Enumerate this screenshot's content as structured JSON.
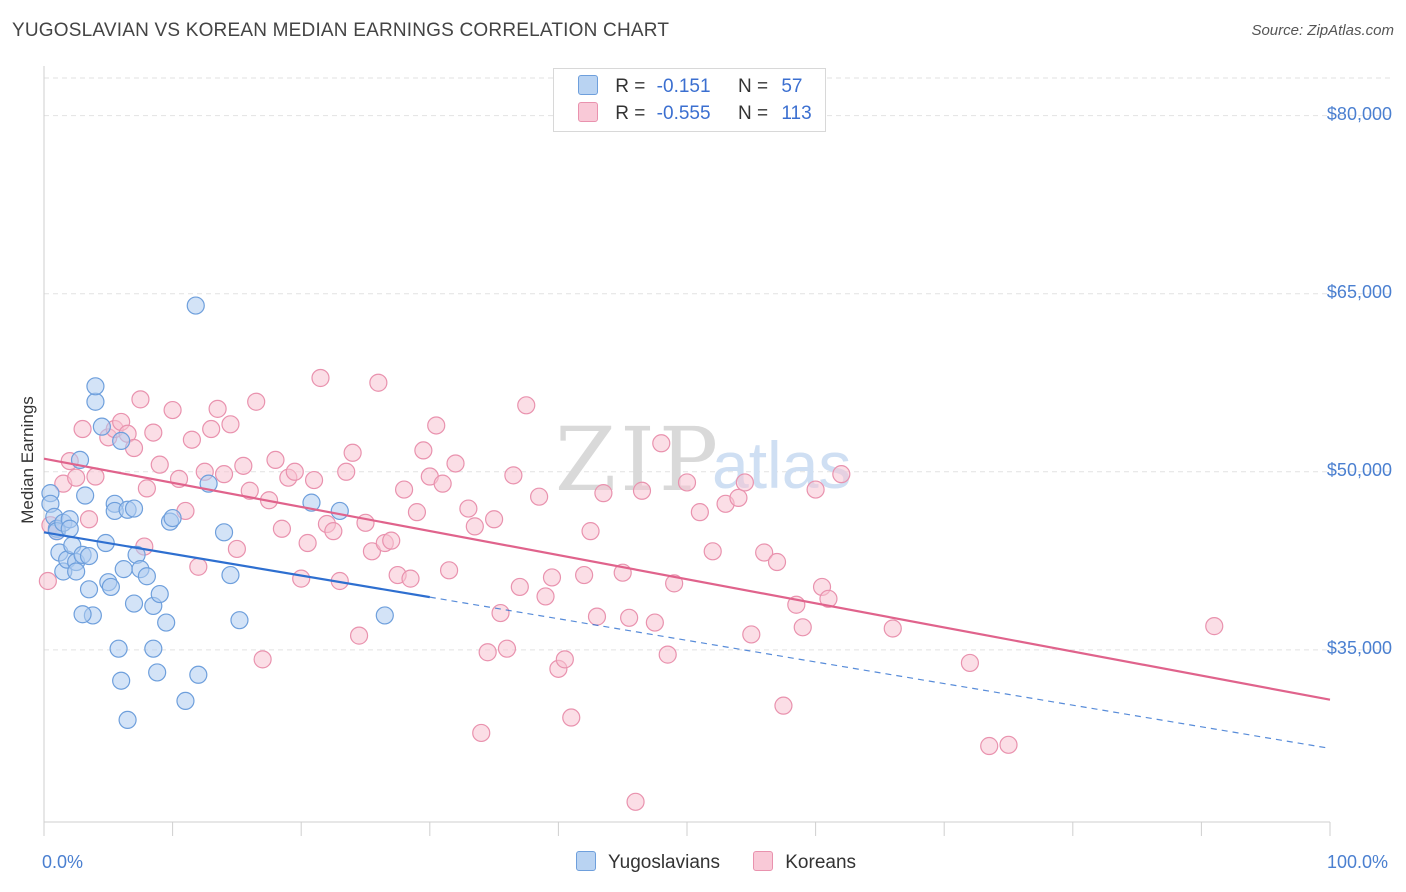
{
  "title": "YUGOSLAVIAN VS KOREAN MEDIAN EARNINGS CORRELATION CHART",
  "source": "Source: ZipAtlas.com",
  "watermark": {
    "zip": "ZIP",
    "atlas": "atlas"
  },
  "legend": {
    "rows": [
      {
        "r_label": "R =",
        "r_value": "-0.151",
        "n_label": "N =",
        "n_value": "57"
      },
      {
        "r_label": "R =",
        "r_value": "-0.555",
        "n_label": "N =",
        "n_value": "113"
      }
    ]
  },
  "bottom_legend": {
    "series1": "Yugoslavians",
    "series2": "Koreans"
  },
  "colors": {
    "blue_fill": "#aeccf0",
    "blue_stroke": "#6e9fdc",
    "blue_line": "#2e6fd0",
    "pink_fill": "#f8c2d2",
    "pink_stroke": "#e992ae",
    "pink_line": "#e0638c",
    "tick_text": "#4a7fd0"
  },
  "chart_data": {
    "type": "scatter",
    "title": "YUGOSLAVIAN VS KOREAN MEDIAN EARNINGS CORRELATION CHART",
    "xlabel": "",
    "ylabel": "Median Earnings",
    "xlim": [
      0,
      100
    ],
    "ylim": [
      20500,
      83000
    ],
    "x_tick_labels": [
      "0.0%",
      "100.0%"
    ],
    "y_ticks": [
      35000,
      50000,
      65000,
      80000
    ],
    "y_tick_labels": [
      "$35,000",
      "$50,000",
      "$65,000",
      "$80,000"
    ],
    "series": [
      {
        "name": "Yugoslavians",
        "R": -0.151,
        "N": 57,
        "trend": {
          "x0": 0,
          "y0": 44900,
          "x1": 100,
          "y1": 26700,
          "solid_until_x": 30
        },
        "points": [
          [
            0.5,
            48200
          ],
          [
            0.5,
            47300
          ],
          [
            0.8,
            46200
          ],
          [
            1.0,
            45200
          ],
          [
            1.0,
            45000
          ],
          [
            1.2,
            43200
          ],
          [
            1.5,
            41600
          ],
          [
            1.5,
            45700
          ],
          [
            1.8,
            42600
          ],
          [
            2.0,
            46000
          ],
          [
            2.0,
            45200
          ],
          [
            2.2,
            43800
          ],
          [
            2.5,
            42400
          ],
          [
            2.5,
            41600
          ],
          [
            2.8,
            51000
          ],
          [
            3.0,
            43000
          ],
          [
            3.2,
            48000
          ],
          [
            3.5,
            42900
          ],
          [
            3.5,
            40100
          ],
          [
            3.8,
            37900
          ],
          [
            4.0,
            55900
          ],
          [
            4.0,
            57200
          ],
          [
            4.5,
            53800
          ],
          [
            4.8,
            44000
          ],
          [
            5.0,
            40700
          ],
          [
            5.2,
            40300
          ],
          [
            5.5,
            47300
          ],
          [
            5.5,
            46700
          ],
          [
            5.8,
            35100
          ],
          [
            6.0,
            32400
          ],
          [
            6.0,
            52600
          ],
          [
            6.2,
            41800
          ],
          [
            6.5,
            46800
          ],
          [
            6.5,
            29100
          ],
          [
            7.0,
            46900
          ],
          [
            7.0,
            38900
          ],
          [
            7.2,
            43000
          ],
          [
            7.5,
            41800
          ],
          [
            8.0,
            41200
          ],
          [
            8.5,
            38700
          ],
          [
            8.5,
            35100
          ],
          [
            8.8,
            33100
          ],
          [
            9.0,
            39700
          ],
          [
            9.5,
            37300
          ],
          [
            9.8,
            45800
          ],
          [
            10.0,
            46100
          ],
          [
            11.0,
            30700
          ],
          [
            11.8,
            64000
          ],
          [
            12.0,
            32900
          ],
          [
            12.8,
            49000
          ],
          [
            14.0,
            44900
          ],
          [
            14.5,
            41300
          ],
          [
            15.2,
            37500
          ],
          [
            20.8,
            47400
          ],
          [
            23.0,
            46700
          ],
          [
            26.5,
            37900
          ],
          [
            3.0,
            38000
          ]
        ]
      },
      {
        "name": "Koreans",
        "R": -0.555,
        "N": 113,
        "trend": {
          "x0": 0,
          "y0": 51100,
          "x1": 100,
          "y1": 30800
        },
        "points": [
          [
            0.3,
            40800
          ],
          [
            0.5,
            45500
          ],
          [
            1.0,
            45000
          ],
          [
            1.5,
            49000
          ],
          [
            2.0,
            50900
          ],
          [
            2.5,
            49500
          ],
          [
            3.0,
            53600
          ],
          [
            3.5,
            46000
          ],
          [
            4.0,
            49600
          ],
          [
            5.0,
            52900
          ],
          [
            5.5,
            53600
          ],
          [
            6.0,
            54200
          ],
          [
            6.5,
            53200
          ],
          [
            7.0,
            52000
          ],
          [
            7.5,
            56100
          ],
          [
            7.8,
            43700
          ],
          [
            8.0,
            48600
          ],
          [
            8.5,
            53300
          ],
          [
            9.0,
            50600
          ],
          [
            10.0,
            55200
          ],
          [
            10.5,
            49400
          ],
          [
            11.0,
            46700
          ],
          [
            11.5,
            52700
          ],
          [
            12.0,
            42000
          ],
          [
            12.5,
            50000
          ],
          [
            13.0,
            53600
          ],
          [
            13.5,
            55300
          ],
          [
            14.0,
            49800
          ],
          [
            14.5,
            54000
          ],
          [
            15.0,
            43500
          ],
          [
            15.5,
            50500
          ],
          [
            16.0,
            48400
          ],
          [
            16.5,
            55900
          ],
          [
            17.0,
            34200
          ],
          [
            17.5,
            47600
          ],
          [
            18.0,
            51000
          ],
          [
            18.5,
            45200
          ],
          [
            19.0,
            49500
          ],
          [
            19.5,
            50000
          ],
          [
            20.0,
            41000
          ],
          [
            20.5,
            44000
          ],
          [
            21.0,
            49300
          ],
          [
            21.5,
            57900
          ],
          [
            22.0,
            45600
          ],
          [
            22.5,
            45000
          ],
          [
            23.0,
            40800
          ],
          [
            23.5,
            50000
          ],
          [
            24.0,
            51600
          ],
          [
            24.5,
            36200
          ],
          [
            25.0,
            45700
          ],
          [
            25.5,
            43300
          ],
          [
            26.0,
            57500
          ],
          [
            26.5,
            44000
          ],
          [
            27.0,
            44200
          ],
          [
            27.5,
            41300
          ],
          [
            28.0,
            48500
          ],
          [
            28.5,
            41000
          ],
          [
            29.0,
            46600
          ],
          [
            29.5,
            51800
          ],
          [
            30.0,
            49600
          ],
          [
            30.5,
            53900
          ],
          [
            31.0,
            49000
          ],
          [
            31.5,
            41700
          ],
          [
            32.0,
            50700
          ],
          [
            33.0,
            46900
          ],
          [
            33.5,
            45400
          ],
          [
            34.0,
            28000
          ],
          [
            34.5,
            34800
          ],
          [
            35.0,
            46000
          ],
          [
            35.5,
            38100
          ],
          [
            36.0,
            35100
          ],
          [
            36.5,
            49700
          ],
          [
            37.0,
            40300
          ],
          [
            37.5,
            55600
          ],
          [
            38.5,
            47900
          ],
          [
            39.0,
            39500
          ],
          [
            39.5,
            41100
          ],
          [
            40.0,
            33400
          ],
          [
            40.5,
            34200
          ],
          [
            41.0,
            29300
          ],
          [
            42.0,
            41300
          ],
          [
            42.5,
            45000
          ],
          [
            43.0,
            37800
          ],
          [
            43.5,
            48200
          ],
          [
            45.0,
            41500
          ],
          [
            45.5,
            37700
          ],
          [
            46.0,
            22200
          ],
          [
            46.5,
            48400
          ],
          [
            47.5,
            37300
          ],
          [
            48.0,
            52400
          ],
          [
            48.5,
            34600
          ],
          [
            49.0,
            40600
          ],
          [
            50.0,
            49100
          ],
          [
            51.0,
            46600
          ],
          [
            52.0,
            43300
          ],
          [
            53.0,
            47300
          ],
          [
            54.0,
            47800
          ],
          [
            54.5,
            49100
          ],
          [
            55.0,
            36300
          ],
          [
            56.0,
            43200
          ],
          [
            57.0,
            42400
          ],
          [
            57.5,
            30300
          ],
          [
            58.5,
            38800
          ],
          [
            59.0,
            36900
          ],
          [
            60.0,
            48500
          ],
          [
            60.5,
            40300
          ],
          [
            61.0,
            39300
          ],
          [
            62.0,
            49800
          ],
          [
            66.0,
            36800
          ],
          [
            72.0,
            33900
          ],
          [
            73.5,
            26900
          ],
          [
            75.0,
            27000
          ],
          [
            91.0,
            37000
          ]
        ]
      }
    ]
  }
}
